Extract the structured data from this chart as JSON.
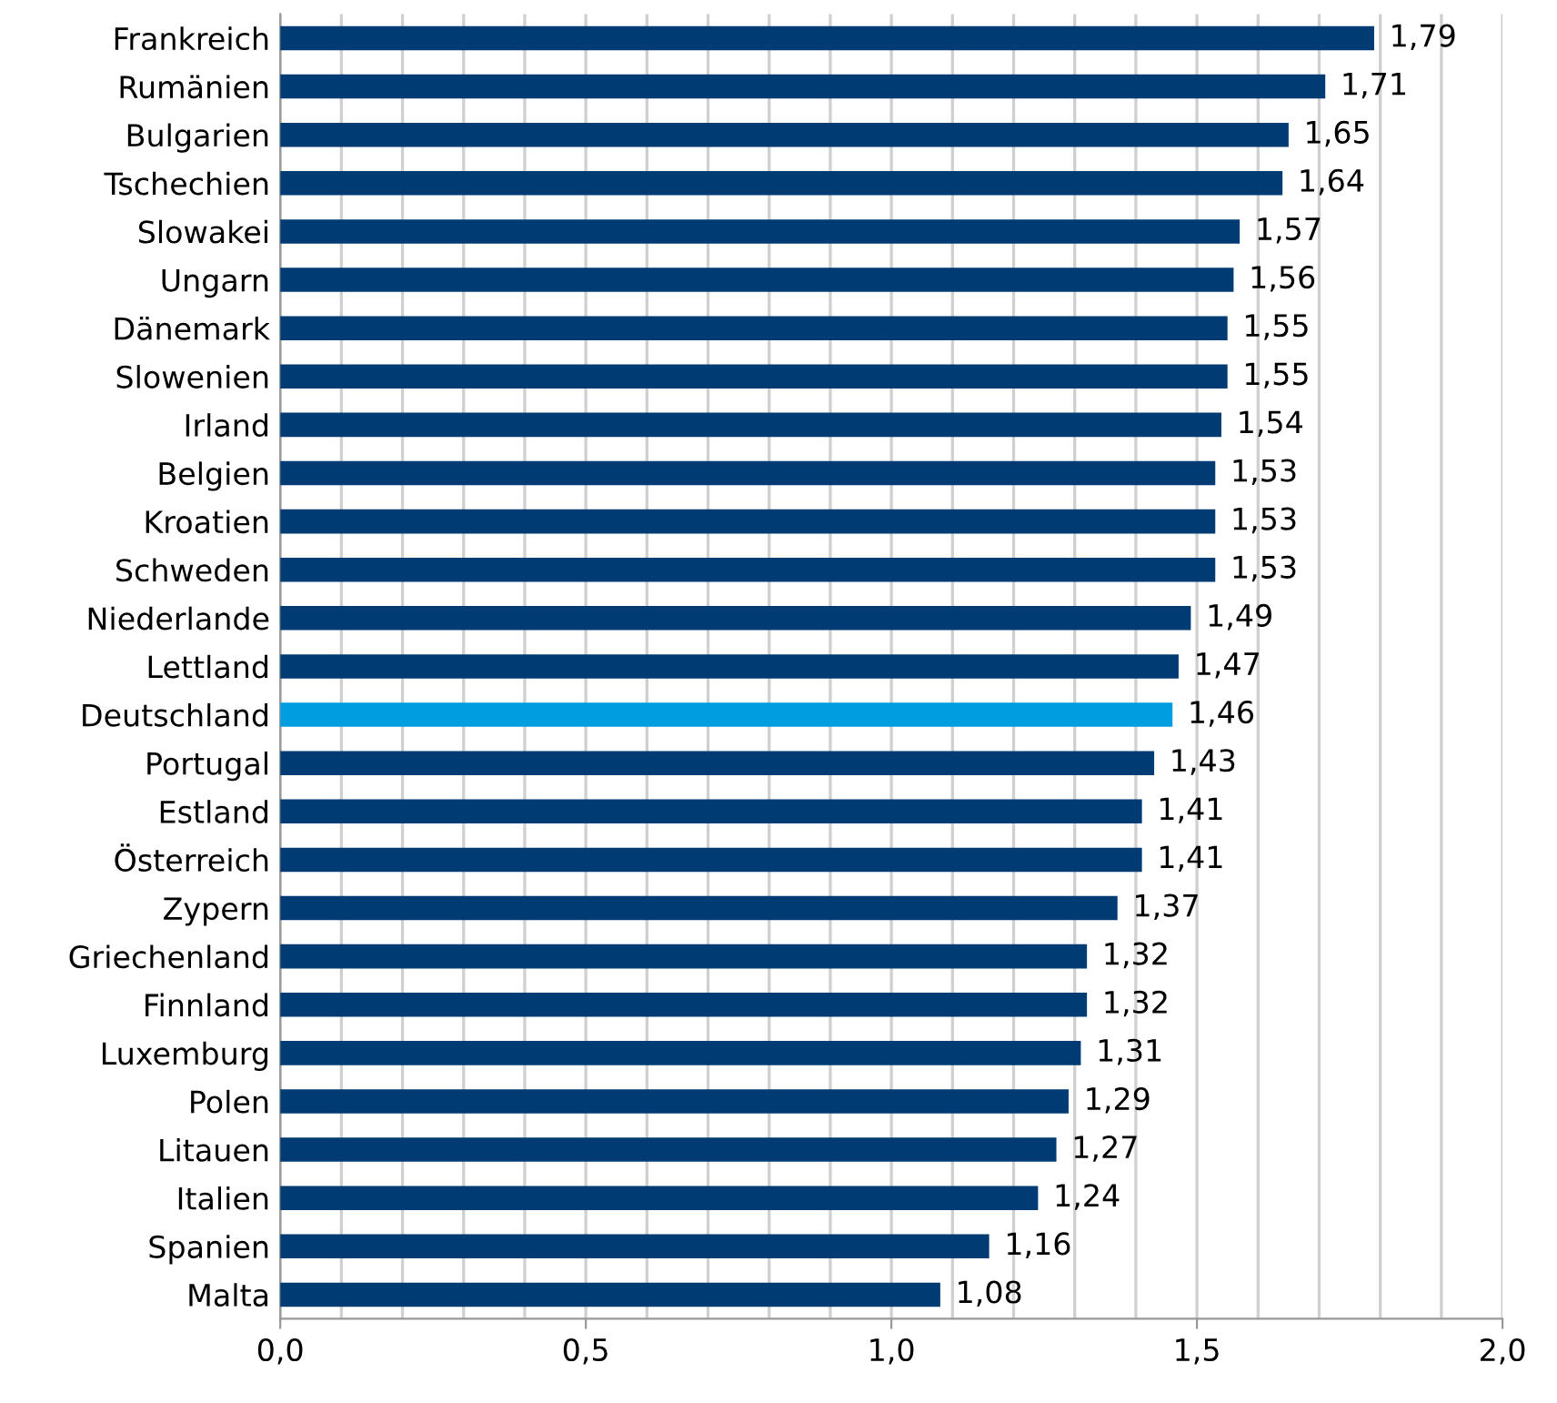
{
  "chart_data": {
    "type": "bar",
    "orientation": "horizontal",
    "categories": [
      "Frankreich",
      "Rumänien",
      "Bulgarien",
      "Tschechien",
      "Slowakei",
      "Ungarn",
      "Dänemark",
      "Slowenien",
      "Irland",
      "Belgien",
      "Kroatien",
      "Schweden",
      "Niederlande",
      "Lettland",
      "Deutschland",
      "Portugal",
      "Estland",
      "Österreich",
      "Zypern",
      "Griechenland",
      "Finnland",
      "Luxemburg",
      "Polen",
      "Litauen",
      "Italien",
      "Spanien",
      "Malta"
    ],
    "values": [
      1.79,
      1.71,
      1.65,
      1.64,
      1.57,
      1.56,
      1.55,
      1.55,
      1.54,
      1.53,
      1.53,
      1.53,
      1.49,
      1.47,
      1.46,
      1.43,
      1.41,
      1.41,
      1.37,
      1.32,
      1.32,
      1.31,
      1.29,
      1.27,
      1.24,
      1.16,
      1.08
    ],
    "value_labels": [
      "1,79",
      "1,71",
      "1,65",
      "1,64",
      "1,57",
      "1,56",
      "1,55",
      "1,55",
      "1,54",
      "1,53",
      "1,53",
      "1,53",
      "1,49",
      "1,47",
      "1,46",
      "1,43",
      "1,41",
      "1,41",
      "1,37",
      "1,32",
      "1,32",
      "1,31",
      "1,29",
      "1,27",
      "1,24",
      "1,16",
      "1,08"
    ],
    "colors": [
      "#003b73",
      "#003b73",
      "#003b73",
      "#003b73",
      "#003b73",
      "#003b73",
      "#003b73",
      "#003b73",
      "#003b73",
      "#003b73",
      "#003b73",
      "#003b73",
      "#003b73",
      "#003b73",
      "#009ee0",
      "#003b73",
      "#003b73",
      "#003b73",
      "#003b73",
      "#003b73",
      "#003b73",
      "#003b73",
      "#003b73",
      "#003b73",
      "#003b73",
      "#003b73",
      "#003b73"
    ],
    "xlim": [
      0,
      2.0
    ],
    "xticks": [
      {
        "value": 0,
        "label": "0,0"
      },
      {
        "value": 0.1,
        "label": null
      },
      {
        "value": 0.2,
        "label": null
      },
      {
        "value": 0.3,
        "label": null
      },
      {
        "value": 0.4,
        "label": null
      },
      {
        "value": 0.5,
        "label": "0,5"
      },
      {
        "value": 0.6,
        "label": null
      },
      {
        "value": 0.7,
        "label": null
      },
      {
        "value": 0.8,
        "label": null
      },
      {
        "value": 0.9,
        "label": null
      },
      {
        "value": 1.0,
        "label": "1,0"
      },
      {
        "value": 1.1,
        "label": null
      },
      {
        "value": 1.2,
        "label": null
      },
      {
        "value": 1.3,
        "label": null
      },
      {
        "value": 1.4,
        "label": null
      },
      {
        "value": 1.5,
        "label": "1,5"
      },
      {
        "value": 1.6,
        "label": null
      },
      {
        "value": 1.7,
        "label": null
      },
      {
        "value": 1.8,
        "label": null
      },
      {
        "value": 1.9,
        "label": null
      },
      {
        "value": 2.0,
        "label": "2,0"
      }
    ],
    "grid": "x"
  }
}
